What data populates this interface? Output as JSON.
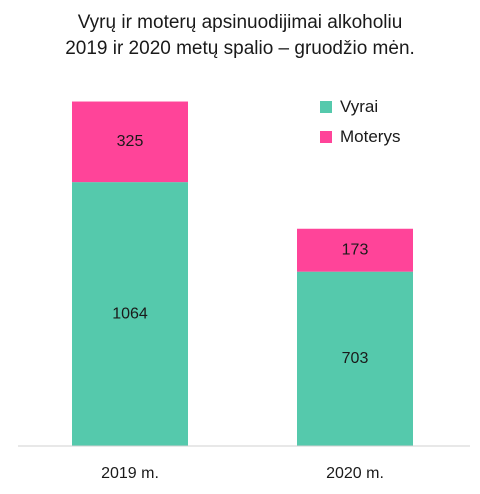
{
  "chart_data": {
    "type": "bar",
    "stacked": true,
    "title_lines": [
      "Vyrų ir moterų apsinuodijimai alkoholiu",
      "2019 ir 2020 metų spalio – gruodžio mėn."
    ],
    "categories": [
      "2019 m.",
      "2020 m."
    ],
    "series": [
      {
        "name": "Vyrai",
        "values": [
          1064,
          703
        ],
        "color": "#55c9ac"
      },
      {
        "name": "Moterys",
        "values": [
          325,
          173
        ],
        "color": "#ff4499"
      }
    ],
    "ylim": [
      0,
      1500
    ],
    "legend_position": "top-right",
    "grid": false
  }
}
